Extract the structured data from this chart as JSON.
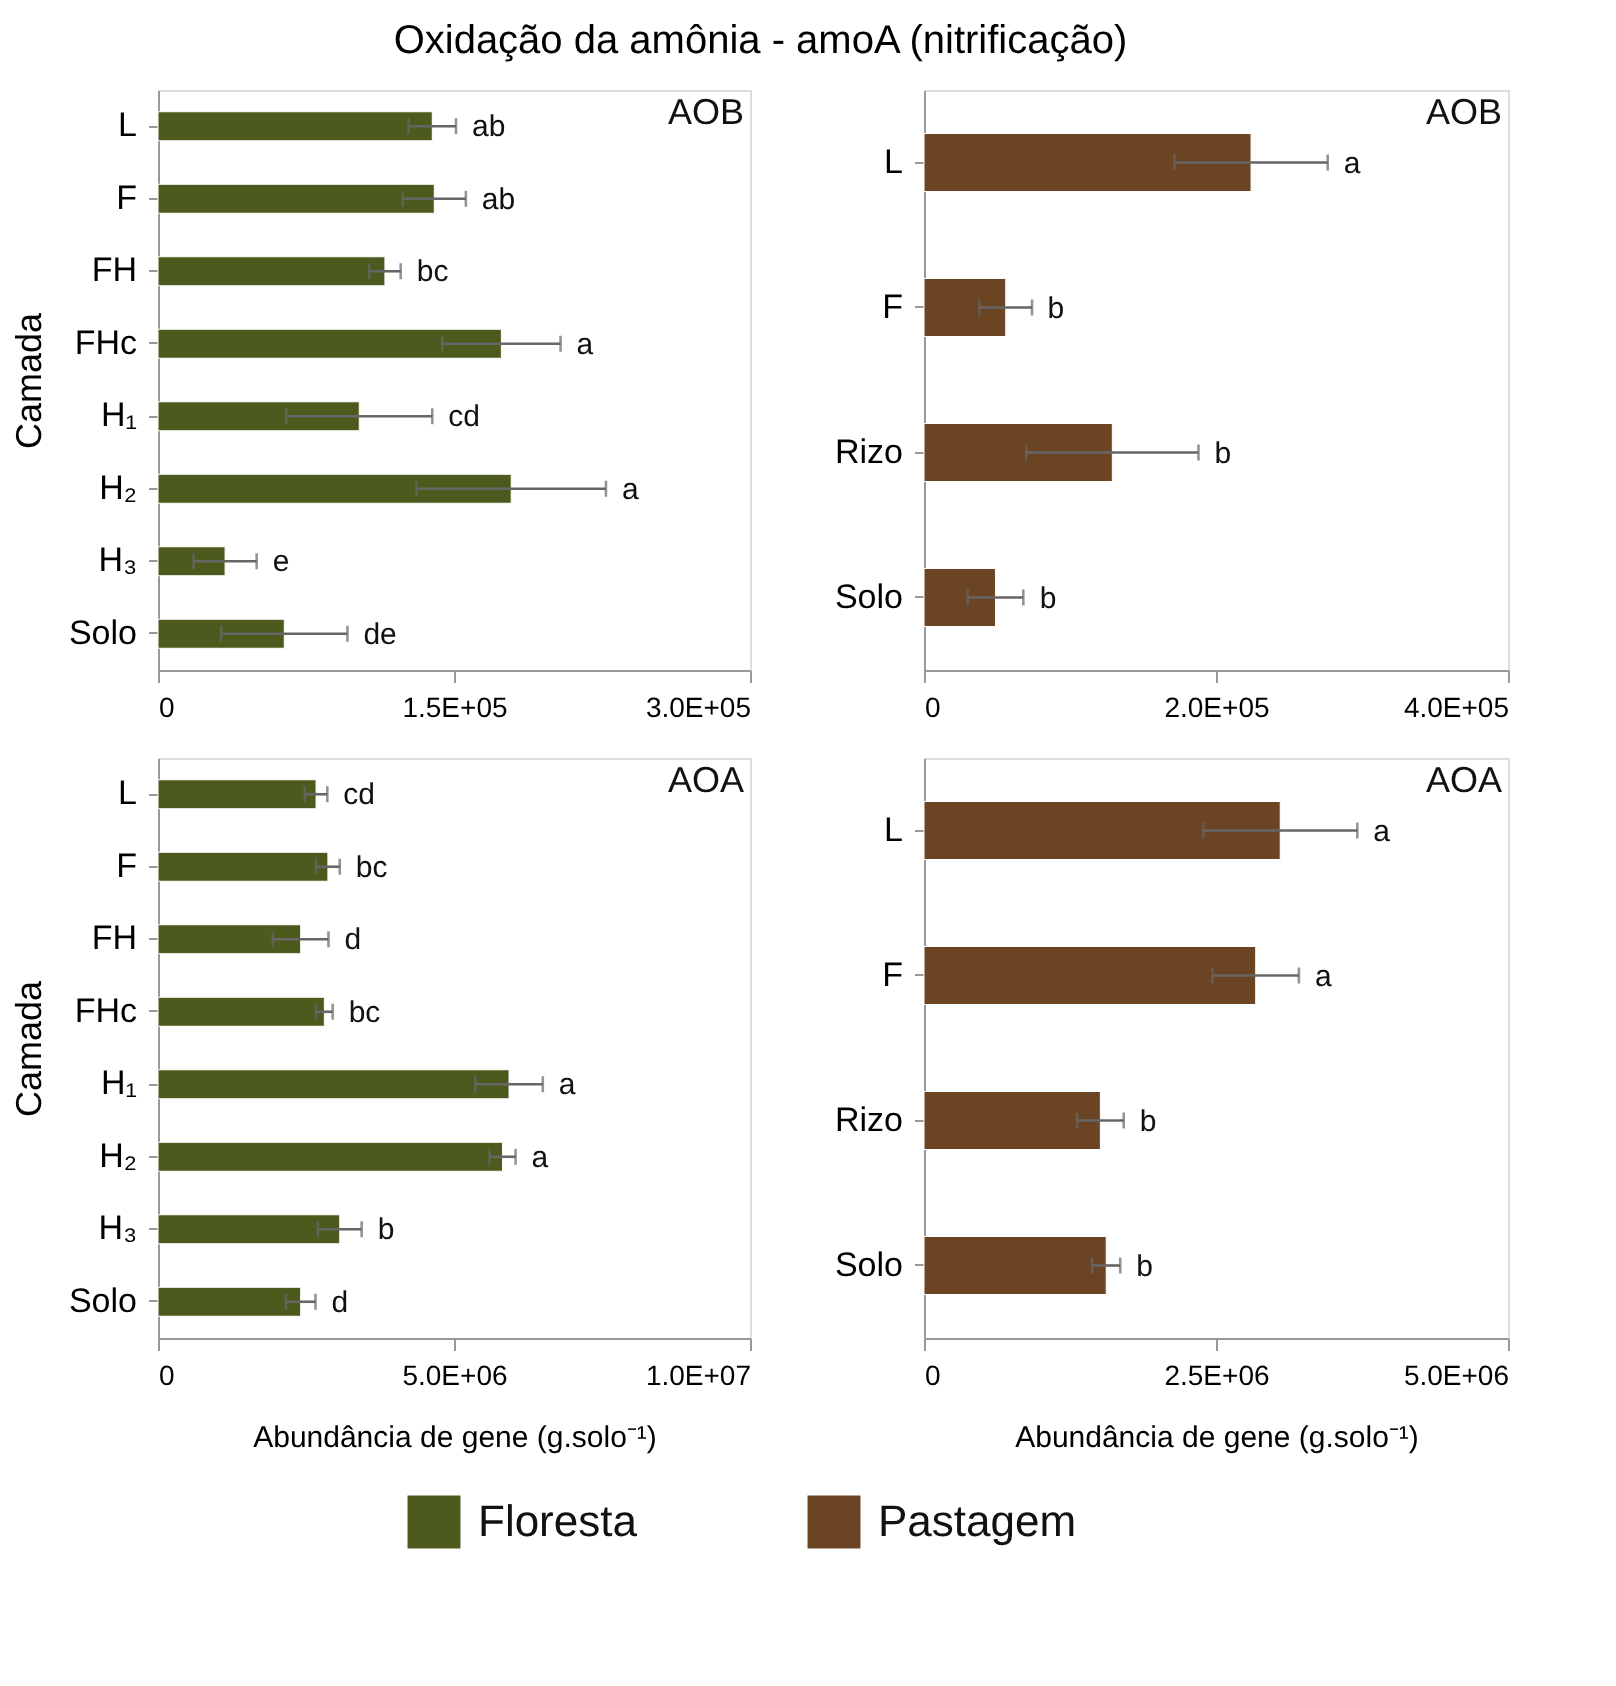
{
  "chart_data": [
    {
      "type": "bar",
      "orientation": "horizontal",
      "title": "Oxidação da amônia - amoA (nitrificação)",
      "ylabel": "Camada",
      "legend": "bottom",
      "categories": [
        "L",
        "F",
        "FH",
        "FHc",
        "H₁",
        "H₂",
        "H₃",
        "Solo"
      ],
      "series": [
        {
          "name": "Floresta",
          "color": "#4d5a1e",
          "values": [
            139000,
            140000,
            115000,
            174000,
            102000,
            179000,
            34000,
            64000
          ],
          "errors": [
            12000,
            16000,
            8000,
            30000,
            37000,
            48000,
            16000,
            32000
          ]
        }
      ],
      "xlim": [
        0,
        300000
      ],
      "xticks": [
        0,
        {
          "value": 150000,
          "label": "1.5E+05"
        },
        {
          "value": 300000,
          "label": "3.0E+05"
        }
      ],
      "annotations": [
        "AOB",
        {
          "text": "ab",
          "x": 151000,
          "y": "L"
        },
        {
          "text": "ab",
          "x": 156000,
          "y": "F"
        },
        {
          "text": "bc",
          "x": 123000,
          "y": "FH"
        },
        {
          "text": "a",
          "x": 204000,
          "y": "FHc"
        },
        {
          "text": "cd",
          "x": 139000,
          "y": "H₁"
        },
        {
          "text": "a",
          "x": 227000,
          "y": "H₂"
        },
        {
          "text": "e",
          "x": 50000,
          "y": "H₃"
        },
        {
          "text": "de",
          "x": 96000,
          "y": "Solo"
        }
      ]
    },
    {
      "type": "bar",
      "orientation": "horizontal",
      "legend": "bottom",
      "categories": [
        "L",
        "F",
        "Rizo",
        "Solo"
      ],
      "series": [
        {
          "name": "Pastagem",
          "color": "#6b4423",
          "values": [
            224000,
            56000,
            129000,
            49000
          ],
          "errors": [
            52500,
            18000,
            59000,
            19000
          ]
        }
      ],
      "xlim": [
        0,
        400000
      ],
      "xticks": [
        0,
        {
          "value": 200000,
          "label": "2.0E+05"
        },
        {
          "value": 400000,
          "label": "4.0E+05"
        }
      ],
      "annotations": [
        "AOB",
        {
          "text": "a",
          "x": 276500,
          "y": "L"
        },
        {
          "text": "b",
          "x": 73600,
          "y": "F"
        },
        {
          "text": "b",
          "x": 188000,
          "y": "Rizo"
        },
        {
          "text": "b",
          "x": 68400,
          "y": "Solo"
        }
      ]
    },
    {
      "type": "bar",
      "orientation": "horizontal",
      "ylabel": "Camada",
      "xlabel": "Abundância de gene (g.solo⁻¹)",
      "legend": "bottom",
      "categories": [
        "L",
        "F",
        "FH",
        "FHc",
        "H₁",
        "H₂",
        "H₃",
        "Solo"
      ],
      "series": [
        {
          "name": "Floresta",
          "color": "#4d5a1e",
          "values": [
            2670000,
            2870000,
            2410000,
            2810000,
            5930000,
            5820000,
            3070000,
            2410000
          ],
          "errors": [
            190000,
            200000,
            470000,
            140000,
            570000,
            220000,
            370000,
            250000
          ]
        }
      ],
      "xlim": [
        0,
        10000000
      ],
      "xticks": [
        0,
        {
          "value": 5000000,
          "label": "5.0E+06"
        },
        {
          "value": 10000000,
          "label": "1.0E+07"
        }
      ],
      "annotations": [
        "AOA",
        {
          "text": "cd",
          "x": 2860000,
          "y": "L"
        },
        {
          "text": "bc",
          "x": 3070000,
          "y": "F"
        },
        {
          "text": "d",
          "x": 2880000,
          "y": "FH"
        },
        {
          "text": "bc",
          "x": 2950000,
          "y": "FHc"
        },
        {
          "text": "a",
          "x": 6500000,
          "y": "H₁"
        },
        {
          "text": "a",
          "x": 6040000,
          "y": "H₂"
        },
        {
          "text": "b",
          "x": 3440000,
          "y": "H₃"
        },
        {
          "text": "d",
          "x": 2660000,
          "y": "Solo"
        }
      ]
    },
    {
      "type": "bar",
      "orientation": "horizontal",
      "xlabel": "Abundância de gene (g.solo⁻¹)",
      "legend": "bottom",
      "categories": [
        "L",
        "F",
        "Rizo",
        "Solo"
      ],
      "series": [
        {
          "name": "Pastagem",
          "color": "#6b4423",
          "values": [
            3050000,
            2840000,
            1510000,
            1560000
          ],
          "errors": [
            660000,
            370000,
            200000,
            120000
          ]
        }
      ],
      "xlim": [
        0,
        5000000
      ],
      "xticks": [
        0,
        {
          "value": 2500000,
          "label": "2.5E+06"
        },
        {
          "value": 5000000,
          "label": "5.0E+06"
        }
      ],
      "annotations": [
        "AOA",
        {
          "text": "a",
          "x": 3710000,
          "y": "L"
        },
        {
          "text": "a",
          "x": 3210000,
          "y": "F"
        },
        {
          "text": "b",
          "x": 1710000,
          "y": "Rizo"
        },
        {
          "text": "b",
          "x": 1680000,
          "y": "Solo"
        }
      ]
    }
  ]
}
